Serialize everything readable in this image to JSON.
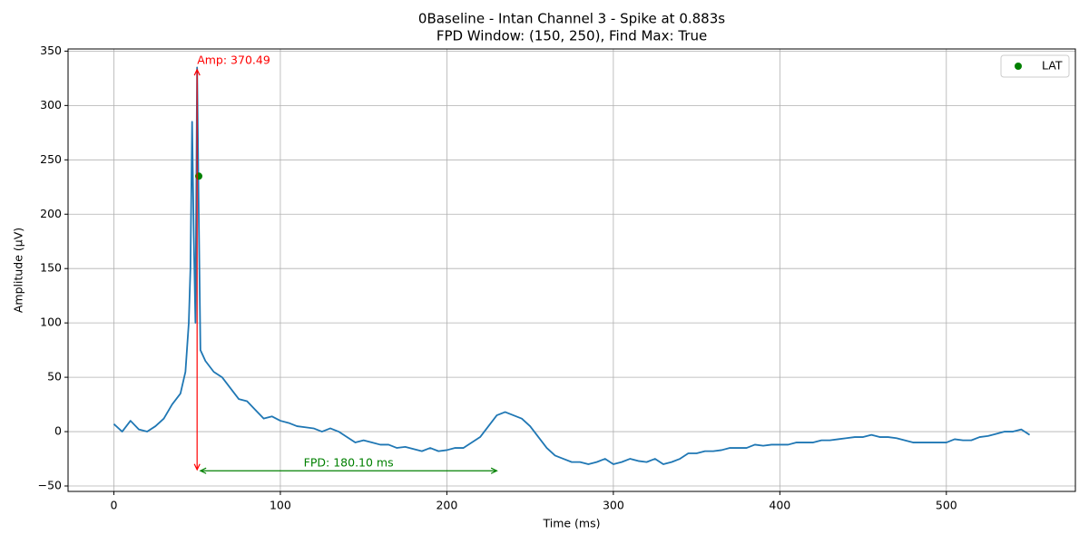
{
  "chart_data": {
    "type": "line",
    "title": [
      "0Baseline - Intan Channel 3 - Spike at 0.883s",
      "FPD Window: (150, 250), Find Max: True"
    ],
    "xlabel": "Time (ms)",
    "ylabel": "Amplitude (µV)",
    "xlim": [
      -27.5,
      577.5
    ],
    "ylim": [
      -55,
      352
    ],
    "xticks": [
      0,
      100,
      200,
      300,
      400,
      500
    ],
    "yticks": [
      {
        "value": -50,
        "label": "−50"
      },
      0,
      50,
      100,
      150,
      200,
      250,
      300,
      350
    ],
    "grid": true,
    "legend": "upper right",
    "series": [
      {
        "type": "line",
        "color": "#1f77b4",
        "x": [
          0,
          5,
          10,
          15,
          20,
          25,
          30,
          35,
          40,
          43,
          45,
          46,
          47,
          48,
          49,
          50,
          51,
          52,
          55,
          60,
          65,
          70,
          75,
          80,
          85,
          90,
          95,
          100,
          105,
          110,
          115,
          120,
          125,
          130,
          135,
          140,
          145,
          150,
          155,
          160,
          165,
          170,
          175,
          180,
          185,
          190,
          195,
          200,
          205,
          210,
          215,
          220,
          225,
          230,
          235,
          240,
          245,
          250,
          255,
          260,
          265,
          270,
          275,
          280,
          285,
          290,
          295,
          300,
          305,
          310,
          315,
          320,
          325,
          330,
          335,
          340,
          345,
          350,
          355,
          360,
          365,
          370,
          375,
          380,
          385,
          390,
          395,
          400,
          405,
          410,
          415,
          420,
          425,
          430,
          435,
          440,
          445,
          450,
          455,
          460,
          465,
          470,
          475,
          480,
          485,
          490,
          495,
          500,
          505,
          510,
          515,
          520,
          525,
          530,
          535,
          540,
          545,
          550
        ],
        "values": [
          7,
          0,
          10,
          2,
          0,
          5,
          12,
          25,
          35,
          55,
          100,
          150,
          285,
          180,
          100,
          335,
          200,
          75,
          65,
          55,
          50,
          40,
          30,
          28,
          20,
          12,
          14,
          10,
          8,
          5,
          4,
          3,
          0,
          3,
          0,
          -5,
          -10,
          -8,
          -10,
          -12,
          -12,
          -15,
          -14,
          -16,
          -18,
          -15,
          -18,
          -17,
          -15,
          -15,
          -10,
          -5,
          5,
          15,
          18,
          15,
          12,
          5,
          -5,
          -15,
          -22,
          -25,
          -28,
          -28,
          -30,
          -28,
          -25,
          -30,
          -28,
          -25,
          -27,
          -28,
          -25,
          -30,
          -28,
          -25,
          -20,
          -20,
          -18,
          -18,
          -17,
          -15,
          -15,
          -15,
          -12,
          -13,
          -12,
          -12,
          -12,
          -10,
          -10,
          -10,
          -8,
          -8,
          -7,
          -6,
          -5,
          -5,
          -3,
          -5,
          -5,
          -6,
          -8,
          -10,
          -10,
          -10,
          -10,
          -10,
          -7,
          -8,
          -8,
          -5,
          -4,
          -2,
          0,
          0,
          2,
          -3
        ]
      },
      {
        "type": "scatter",
        "name": "LAT",
        "color": "green",
        "x": [
          51
        ],
        "values": [
          235
        ]
      }
    ],
    "annotations": [
      {
        "text": "Amp: 370.49",
        "color": "red",
        "x": 50,
        "y": -35,
        "x2": 50,
        "y2": 333
      },
      {
        "text": "FPD: 180.10 ms",
        "color": "green",
        "x": 52,
        "y": -36,
        "x2": 230,
        "y2": -36
      }
    ]
  }
}
